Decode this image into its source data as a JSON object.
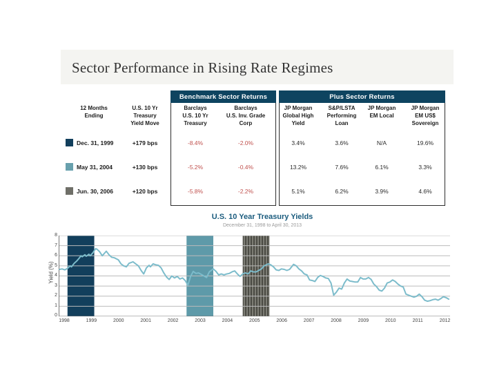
{
  "slide": {
    "title": "Sector Performance in Rising Rate Regimes"
  },
  "table": {
    "group_headers": [
      {
        "label": "Benchmark Sector Returns"
      },
      {
        "label": "Plus Sector Returns"
      }
    ],
    "columns": [
      "12 Months\nEnding",
      "U.S. 10 Yr\nTreasury\nYield Move",
      "Barclays\nU.S. 10 Yr\nTreasury",
      "Barclays\nU.S. Inv. Grade\nCorp",
      "JP Morgan\nGlobal High\nYield",
      "S&P/LSTA\nPerforming\nLoan",
      "JP Morgan\nEM Local",
      "JP Morgan\nEM US$\nSovereign"
    ],
    "rows": [
      {
        "swatch": "#123f5c",
        "date": "Dec. 31, 1999",
        "move": "+179 bps",
        "values": [
          "-8.4%",
          "-2.0%",
          "3.4%",
          "3.6%",
          "N/A",
          "19.6%"
        ]
      },
      {
        "swatch": "#68a0ad",
        "date": "May 31, 2004",
        "move": "+130 bps",
        "values": [
          "-5.2%",
          "-0.4%",
          "13.2%",
          "7.6%",
          "6.1%",
          "3.3%"
        ]
      },
      {
        "swatch": "#6f6f68",
        "date": "Jun. 30, 2006",
        "move": "+120 bps",
        "values": [
          "-5.8%",
          "-2.2%",
          "5.1%",
          "6.2%",
          "3.9%",
          "4.6%"
        ]
      }
    ]
  },
  "chart_data": {
    "type": "line",
    "title": "U.S. 10 Year Treasury Yields",
    "subtitle": "December 31, 1998 to April 30, 2013",
    "ylabel": "Yield (%)",
    "ylim": [
      0,
      8
    ],
    "yticks": [
      0,
      1,
      2,
      3,
      4,
      5,
      6,
      7,
      8
    ],
    "xticks": [
      "1998",
      "1999",
      "2000",
      "2001",
      "2002",
      "2003",
      "2004",
      "2005",
      "2006",
      "2007",
      "2008",
      "2009",
      "2010",
      "2011",
      "2012"
    ],
    "grid": true,
    "line_color": "#7cbccb",
    "regimes": [
      {
        "label": "12 months ending Dec. 31, 1999",
        "start": 1999.0,
        "end": 2000.0,
        "color": "#123f5c",
        "pattern": "solid"
      },
      {
        "label": "12 months ending May 31, 2004",
        "start": 2003.45,
        "end": 2004.45,
        "color": "#5e9aa9",
        "pattern": "solid"
      },
      {
        "label": "12 months ending Jun. 30, 2006",
        "start": 2005.55,
        "end": 2006.55,
        "color": "#6f6f68",
        "pattern": "stripes"
      }
    ],
    "series": [
      {
        "name": "U.S. 10 Year Treasury Yield",
        "points": [
          [
            1998.7,
            4.65
          ],
          [
            1998.8,
            4.7
          ],
          [
            1998.9,
            4.6
          ],
          [
            1999.0,
            4.75
          ],
          [
            1999.1,
            5.0
          ],
          [
            1999.15,
            4.9
          ],
          [
            1999.25,
            5.25
          ],
          [
            1999.35,
            5.5
          ],
          [
            1999.45,
            5.8
          ],
          [
            1999.5,
            6.0
          ],
          [
            1999.55,
            5.9
          ],
          [
            1999.65,
            6.1
          ],
          [
            1999.7,
            5.95
          ],
          [
            1999.8,
            6.15
          ],
          [
            1999.85,
            6.0
          ],
          [
            1999.95,
            6.3
          ],
          [
            2000.05,
            6.7
          ],
          [
            2000.1,
            6.65
          ],
          [
            2000.2,
            6.4
          ],
          [
            2000.3,
            6.0
          ],
          [
            2000.4,
            6.3
          ],
          [
            2000.45,
            6.45
          ],
          [
            2000.55,
            6.1
          ],
          [
            2000.65,
            5.85
          ],
          [
            2000.75,
            5.8
          ],
          [
            2000.9,
            5.6
          ],
          [
            2001.0,
            5.2
          ],
          [
            2001.1,
            5.0
          ],
          [
            2001.2,
            4.9
          ],
          [
            2001.3,
            5.25
          ],
          [
            2001.45,
            5.4
          ],
          [
            2001.55,
            5.2
          ],
          [
            2001.65,
            5.0
          ],
          [
            2001.75,
            4.55
          ],
          [
            2001.85,
            4.2
          ],
          [
            2001.95,
            4.8
          ],
          [
            2002.05,
            5.05
          ],
          [
            2002.1,
            4.9
          ],
          [
            2002.2,
            5.2
          ],
          [
            2002.3,
            5.1
          ],
          [
            2002.4,
            5.05
          ],
          [
            2002.5,
            4.8
          ],
          [
            2002.6,
            4.3
          ],
          [
            2002.7,
            3.9
          ],
          [
            2002.8,
            3.65
          ],
          [
            2002.9,
            4.0
          ],
          [
            2003.0,
            3.8
          ],
          [
            2003.1,
            3.95
          ],
          [
            2003.2,
            3.7
          ],
          [
            2003.3,
            3.8
          ],
          [
            2003.4,
            3.55
          ],
          [
            2003.5,
            3.1
          ],
          [
            2003.6,
            3.95
          ],
          [
            2003.7,
            4.45
          ],
          [
            2003.8,
            4.25
          ],
          [
            2003.9,
            4.3
          ],
          [
            2004.0,
            4.15
          ],
          [
            2004.1,
            4.0
          ],
          [
            2004.2,
            3.85
          ],
          [
            2004.3,
            4.4
          ],
          [
            2004.45,
            4.7
          ],
          [
            2004.55,
            4.45
          ],
          [
            2004.65,
            4.1
          ],
          [
            2004.75,
            4.2
          ],
          [
            2004.85,
            4.1
          ],
          [
            2004.95,
            4.2
          ],
          [
            2005.05,
            4.25
          ],
          [
            2005.15,
            4.4
          ],
          [
            2005.25,
            4.5
          ],
          [
            2005.35,
            4.2
          ],
          [
            2005.45,
            3.95
          ],
          [
            2005.55,
            4.2
          ],
          [
            2005.65,
            4.3
          ],
          [
            2005.75,
            4.2
          ],
          [
            2005.85,
            4.5
          ],
          [
            2005.95,
            4.4
          ],
          [
            2006.05,
            4.4
          ],
          [
            2006.15,
            4.55
          ],
          [
            2006.25,
            4.7
          ],
          [
            2006.35,
            5.0
          ],
          [
            2006.5,
            5.2
          ],
          [
            2006.6,
            5.1
          ],
          [
            2006.7,
            4.9
          ],
          [
            2006.8,
            4.6
          ],
          [
            2006.9,
            4.55
          ],
          [
            2007.0,
            4.7
          ],
          [
            2007.1,
            4.65
          ],
          [
            2007.2,
            4.55
          ],
          [
            2007.3,
            4.65
          ],
          [
            2007.45,
            5.15
          ],
          [
            2007.55,
            5.0
          ],
          [
            2007.65,
            4.7
          ],
          [
            2007.75,
            4.5
          ],
          [
            2007.85,
            4.2
          ],
          [
            2007.95,
            4.1
          ],
          [
            2008.05,
            3.6
          ],
          [
            2008.15,
            3.55
          ],
          [
            2008.25,
            3.45
          ],
          [
            2008.35,
            3.85
          ],
          [
            2008.45,
            4.05
          ],
          [
            2008.55,
            3.95
          ],
          [
            2008.65,
            3.8
          ],
          [
            2008.75,
            3.75
          ],
          [
            2008.85,
            3.3
          ],
          [
            2008.95,
            2.1
          ],
          [
            2009.05,
            2.4
          ],
          [
            2009.15,
            2.8
          ],
          [
            2009.25,
            2.7
          ],
          [
            2009.35,
            3.3
          ],
          [
            2009.45,
            3.7
          ],
          [
            2009.55,
            3.5
          ],
          [
            2009.65,
            3.45
          ],
          [
            2009.75,
            3.4
          ],
          [
            2009.85,
            3.4
          ],
          [
            2009.95,
            3.85
          ],
          [
            2010.05,
            3.7
          ],
          [
            2010.15,
            3.7
          ],
          [
            2010.25,
            3.85
          ],
          [
            2010.35,
            3.65
          ],
          [
            2010.45,
            3.2
          ],
          [
            2010.55,
            2.95
          ],
          [
            2010.65,
            2.6
          ],
          [
            2010.75,
            2.5
          ],
          [
            2010.85,
            2.8
          ],
          [
            2010.95,
            3.3
          ],
          [
            2011.05,
            3.4
          ],
          [
            2011.15,
            3.6
          ],
          [
            2011.25,
            3.45
          ],
          [
            2011.35,
            3.2
          ],
          [
            2011.45,
            3.0
          ],
          [
            2011.55,
            2.9
          ],
          [
            2011.65,
            2.2
          ],
          [
            2011.75,
            2.1
          ],
          [
            2011.85,
            2.0
          ],
          [
            2011.95,
            1.9
          ],
          [
            2012.05,
            2.0
          ],
          [
            2012.15,
            2.2
          ],
          [
            2012.25,
            1.95
          ],
          [
            2012.35,
            1.6
          ],
          [
            2012.45,
            1.5
          ],
          [
            2012.55,
            1.55
          ],
          [
            2012.65,
            1.65
          ],
          [
            2012.75,
            1.7
          ],
          [
            2012.85,
            1.6
          ],
          [
            2012.95,
            1.75
          ],
          [
            2013.05,
            1.95
          ],
          [
            2013.15,
            1.85
          ],
          [
            2013.25,
            1.7
          ]
        ]
      }
    ]
  }
}
